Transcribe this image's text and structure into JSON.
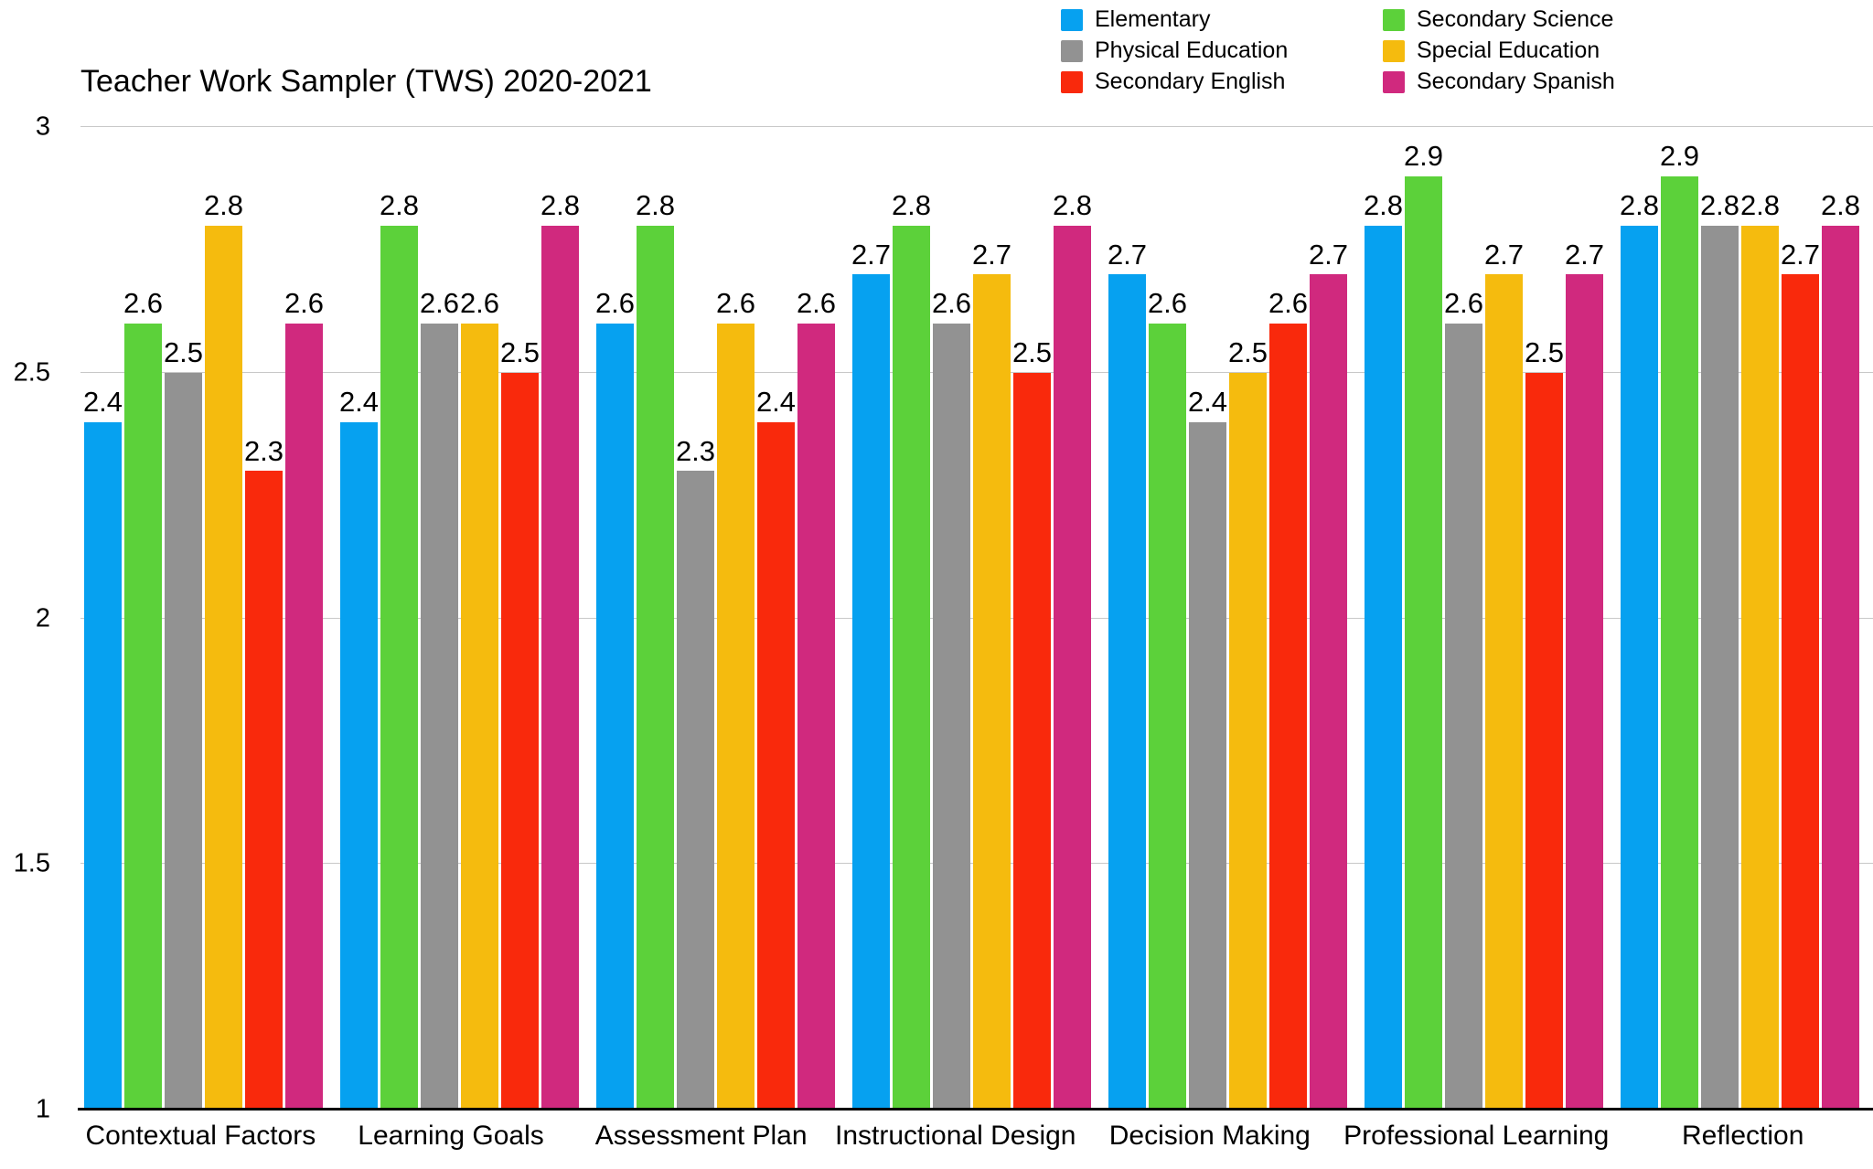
{
  "chart_data": {
    "type": "bar",
    "title": "Teacher Work Sampler (TWS) 2020-2021",
    "categories": [
      "Contextual Factors",
      "Learning Goals",
      "Assessment Plan",
      "Instructional Design",
      "Decision Making",
      "Professional Learning",
      "Reflection"
    ],
    "series": [
      {
        "name": "Elementary",
        "color": "#06a1f0",
        "values": [
          2.4,
          2.4,
          2.6,
          2.7,
          2.7,
          2.8,
          2.8
        ]
      },
      {
        "name": "Secondary Science",
        "color": "#5cd13a",
        "values": [
          2.6,
          2.8,
          2.8,
          2.8,
          2.6,
          2.9,
          2.9
        ]
      },
      {
        "name": "Physical Education",
        "color": "#929292",
        "values": [
          2.5,
          2.6,
          2.3,
          2.6,
          2.4,
          2.6,
          2.8
        ]
      },
      {
        "name": "Special Education",
        "color": "#f5bb0e",
        "values": [
          2.8,
          2.6,
          2.6,
          2.7,
          2.5,
          2.7,
          2.8
        ]
      },
      {
        "name": "Secondary English",
        "color": "#f9290c",
        "values": [
          2.3,
          2.5,
          2.4,
          2.5,
          2.6,
          2.5,
          2.7
        ]
      },
      {
        "name": "Secondary Spanish",
        "color": "#d0297e",
        "values": [
          2.6,
          2.8,
          2.6,
          2.8,
          2.7,
          2.7,
          2.8
        ]
      }
    ],
    "legend_columns": [
      [
        0,
        2,
        4
      ],
      [
        1,
        3,
        5
      ]
    ],
    "legend_position": "top-right",
    "ylim": [
      1,
      3
    ],
    "yticks": [
      1,
      1.5,
      2,
      2.5,
      3
    ],
    "grid": true,
    "colors": {
      "grid": "#c8c8c8",
      "axis": "#000000",
      "text": "#000000"
    }
  }
}
